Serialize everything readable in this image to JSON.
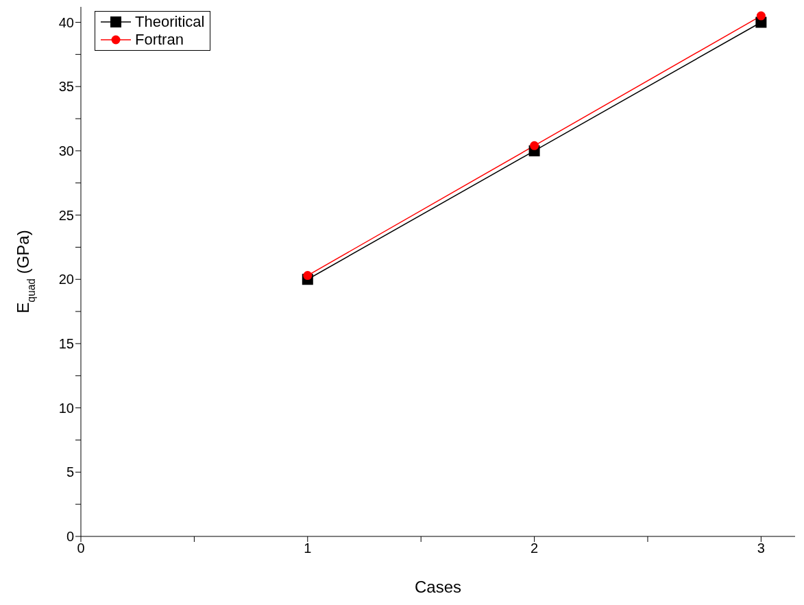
{
  "chart_data": {
    "type": "line",
    "xlabel": "Cases",
    "ylabel": "E$_{quad}$ (GPa)",
    "x": [
      1,
      2,
      3
    ],
    "series": [
      {
        "name": "Theoritical",
        "color": "#000000",
        "values": [
          20,
          30,
          40
        ],
        "marker": "square"
      },
      {
        "name": "Fortran",
        "color": "#ff0000",
        "values": [
          20.3,
          30.4,
          40.5
        ],
        "marker": "circle"
      }
    ],
    "xlim": [
      0,
      3.15
    ],
    "xticks": [
      0,
      {
        "value": 0.5,
        "label": null
      },
      1,
      {
        "value": 1.5,
        "label": null
      },
      2,
      {
        "value": 2.5,
        "label": null
      },
      3
    ],
    "ylim": [
      0,
      41.2
    ],
    "yticks": [
      0,
      {
        "value": 2.5,
        "label": null
      },
      5,
      {
        "value": 7.5,
        "label": null
      },
      10,
      {
        "value": 12.5,
        "label": null
      },
      15,
      {
        "value": 17.5,
        "label": null
      },
      20,
      {
        "value": 22.5,
        "label": null
      },
      25,
      {
        "value": 27.5,
        "label": null
      },
      30,
      {
        "value": 32.5,
        "label": null
      },
      35,
      {
        "value": 37.5,
        "label": null
      },
      40
    ],
    "legend": "top left",
    "grid": false,
    "line_style": "solid"
  }
}
